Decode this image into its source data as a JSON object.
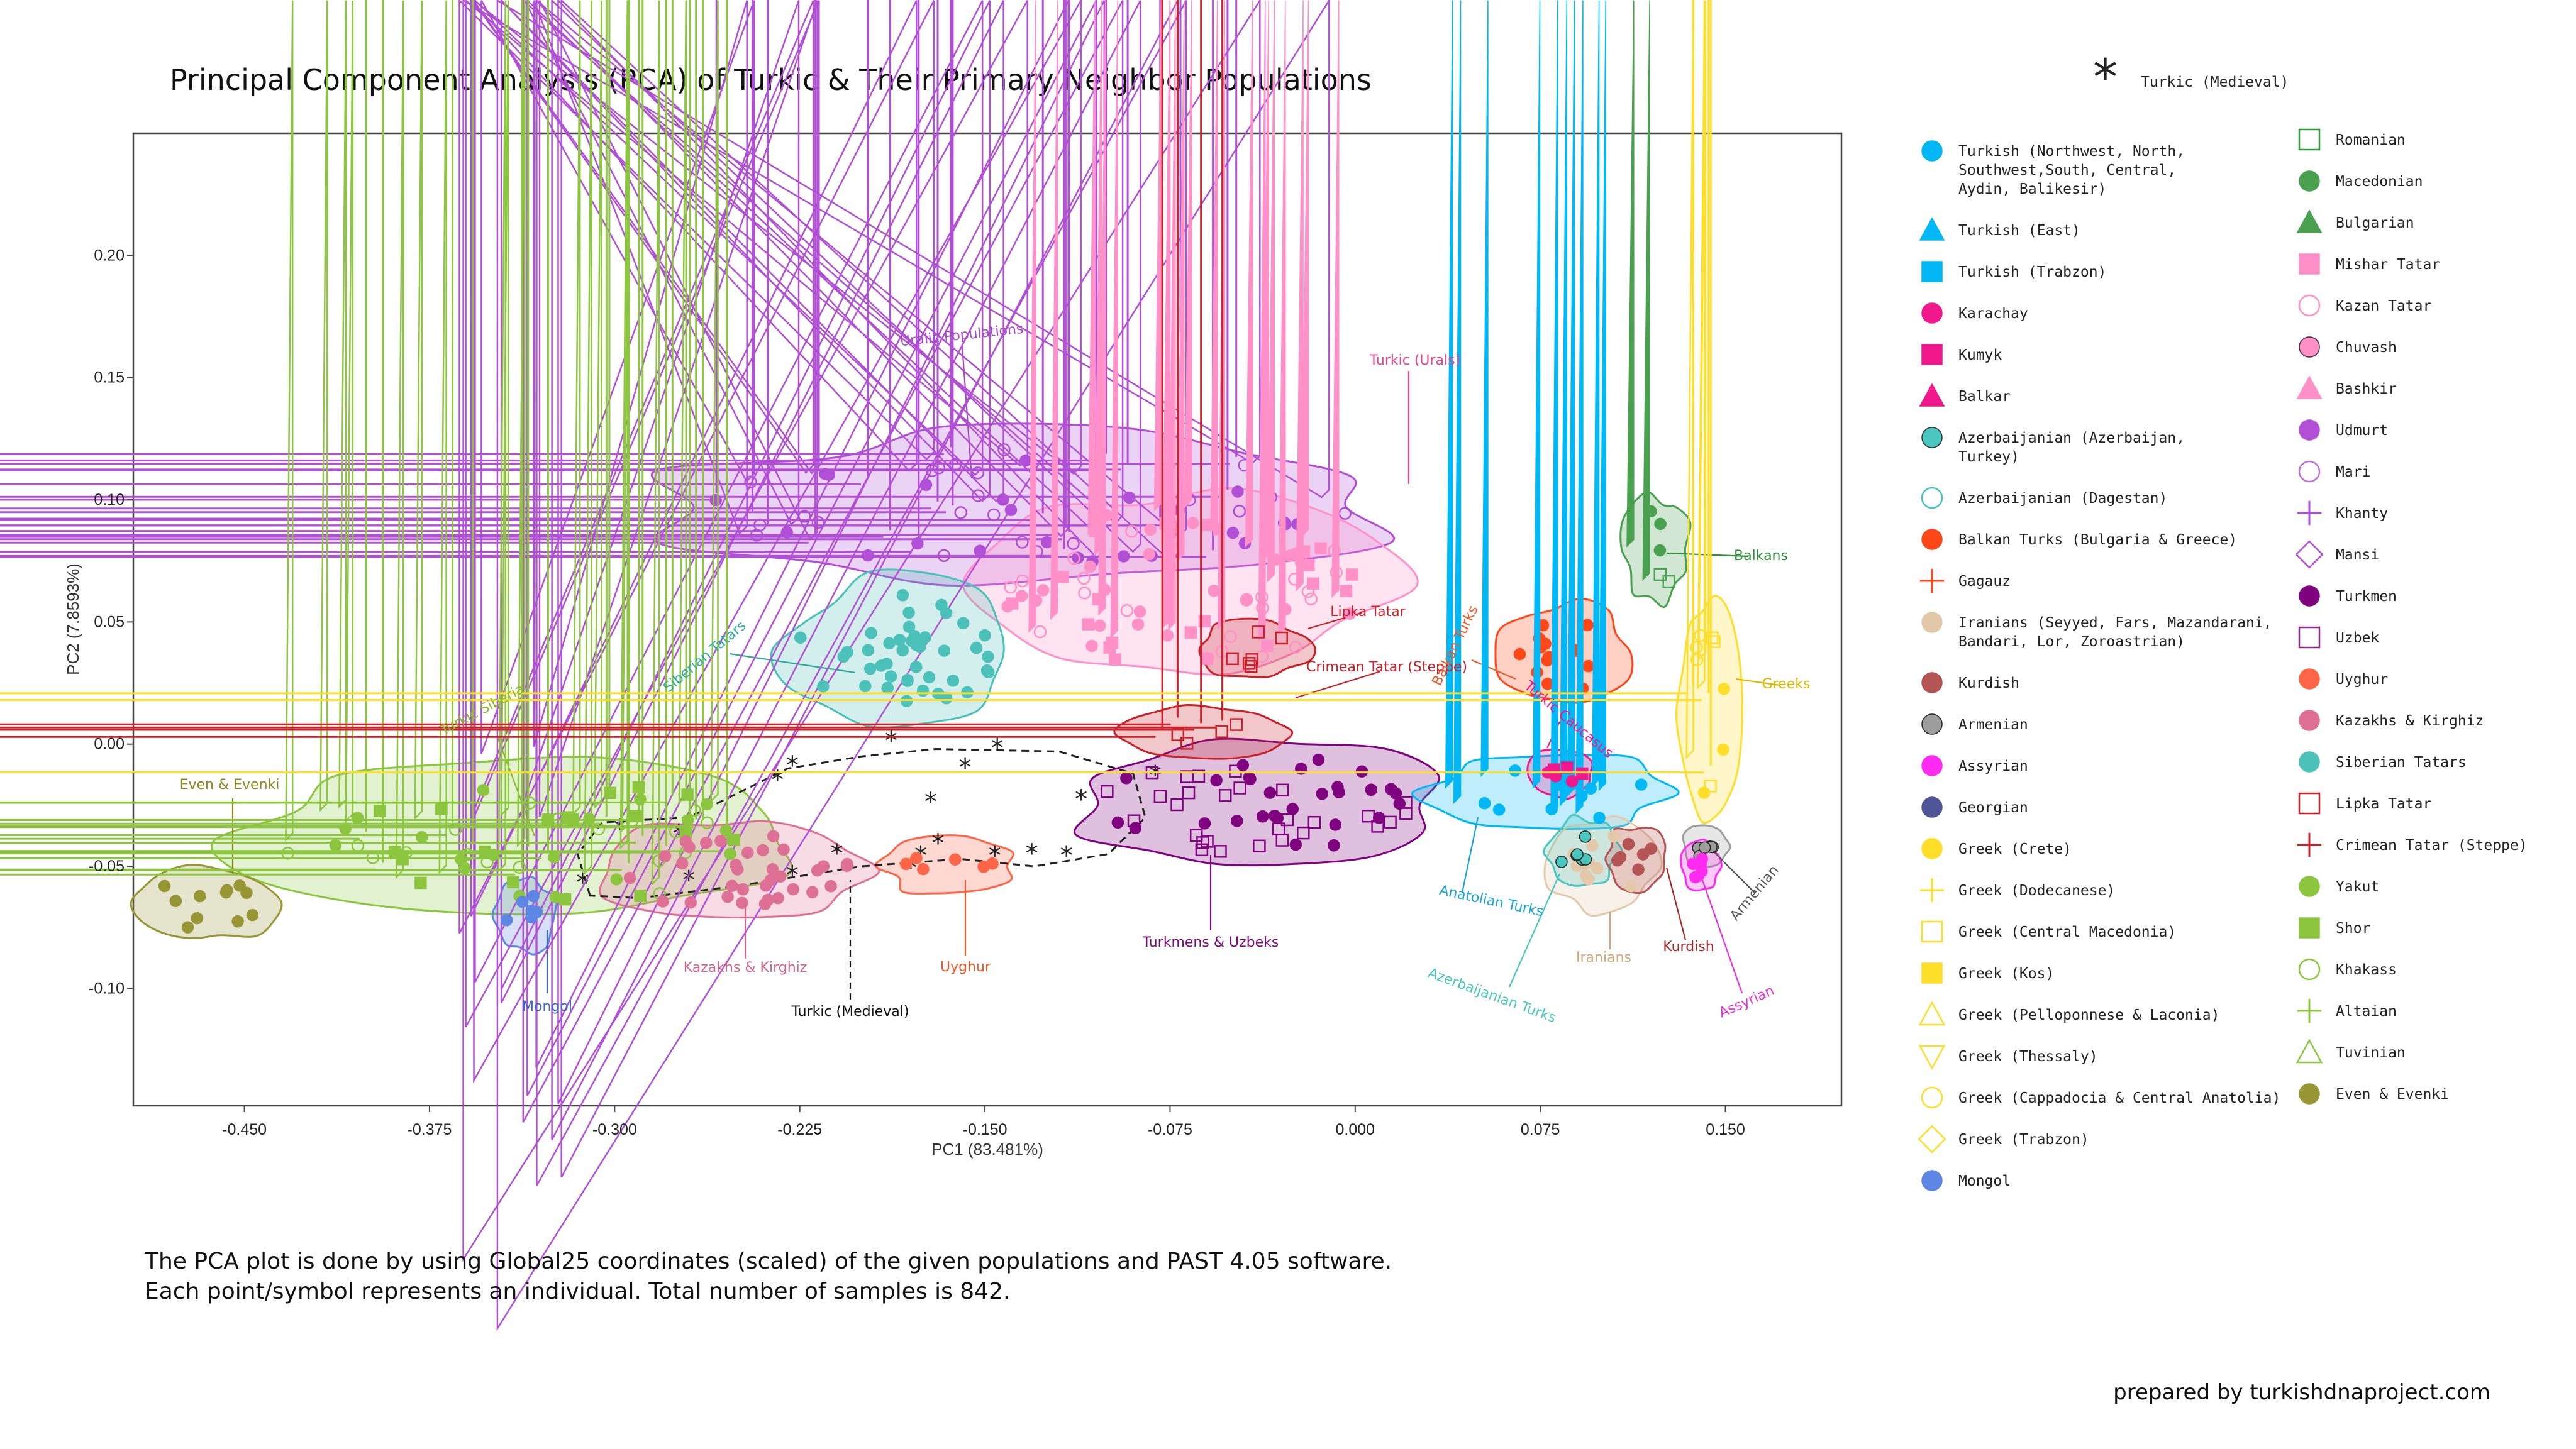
{
  "colors": {
    "turkish": "#00B8F5",
    "turkish_east": "#00B8F5",
    "turkish_trabzon": "#00B8F5",
    "karachay": "#F0188C",
    "kumyk": "#F0188C",
    "balkar": "#F0188C",
    "azerbaijanian": "#49C6BE",
    "balkan_turks": "#FF4719",
    "gagauz": "#FF4719",
    "iranians": "#E3C9A9",
    "kurdish": "#B45454",
    "armenian": "#9E9E9E",
    "assyrian": "#FF2BF0",
    "georgian": "#4F5496",
    "greek": "#FFDE2A",
    "mongol": "#5D86E5",
    "romanian": "#2E9E3E",
    "macedonian": "#49A150",
    "bulgarian": "#49A150",
    "mishar_tatar": "#FF91C8",
    "kazan_tatar": "#FF91C8",
    "chuvash": "#E6449C",
    "bashkir": "#FF91C8",
    "udmurt": "#B14FD6",
    "mari": "#C26EDF",
    "khanty": "#B14FD6",
    "mansi": "#B14FD6",
    "turkmen": "#7F037F",
    "uzbek": "#8C2B8C",
    "uyghur": "#FF6547",
    "kazakhs_kirghiz": "#DE7096",
    "siberian_tatars": "#4BC1B9",
    "lipka_tatar": "#C8212A",
    "crimean_tatar": "#C8212A",
    "yakut": "#8CC63F",
    "shor": "#8CC63F",
    "khakass": "#8CC63F",
    "altaian": "#8CC63F",
    "tuvinian": "#8CC63F",
    "even_evenki": "#989535",
    "medieval": "#222222"
  },
  "header": {
    "title": "Principal Component Analysis (PCA) of Turkic & Their Primary Neighbor Populations",
    "medieval_key_label": "Turkic (Medieval)"
  },
  "legend": {
    "col1": [
      {
        "label": "Turkish (Northwest, North,",
        "label2": "Southwest,South, Central,",
        "label3": "Aydin, Balikesir)",
        "shape": "circle",
        "fill": "#00B8F5",
        "stroke": "#00B8F5"
      },
      {
        "label": "Turkish (East)",
        "shape": "triangle",
        "fill": "#00B8F5",
        "stroke": "#00B8F5"
      },
      {
        "label": "Turkish (Trabzon)",
        "shape": "square",
        "fill": "#00B8F5",
        "stroke": "#00B8F5"
      },
      {
        "label": "Karachay",
        "shape": "circle",
        "fill": "#F0188C",
        "stroke": "#F0188C"
      },
      {
        "label": "Kumyk",
        "shape": "square",
        "fill": "#F0188C",
        "stroke": "#F0188C"
      },
      {
        "label": "Balkar",
        "shape": "triangle",
        "fill": "#F0188C",
        "stroke": "#F0188C"
      },
      {
        "label": "Azerbaijanian (Azerbaijan,",
        "label2": "Turkey)",
        "shape": "circle",
        "fill": "#49C6BE",
        "stroke": "#333333"
      },
      {
        "label": "Azerbaijanian (Dagestan)",
        "shape": "circle-open",
        "fill": "none",
        "stroke": "#49C6BE"
      },
      {
        "label": "Balkan Turks (Bulgaria & Greece)",
        "shape": "circle",
        "fill": "#FF4719",
        "stroke": "#FF4719"
      },
      {
        "label": "Gagauz",
        "shape": "plus",
        "fill": "none",
        "stroke": "#FF4719"
      },
      {
        "label": "Iranians (Seyyed, Fars, Mazandarani,",
        "label2": "Bandari, Lor, Zoroastrian)",
        "shape": "circle",
        "fill": "#E3C9A9",
        "stroke": "#E3C9A9"
      },
      {
        "label": "Kurdish",
        "shape": "circle",
        "fill": "#B45454",
        "stroke": "#B45454"
      },
      {
        "label": "Armenian",
        "shape": "circle",
        "fill": "#9E9E9E",
        "stroke": "#222222"
      },
      {
        "label": "Assyrian",
        "shape": "circle",
        "fill": "#FF2BF0",
        "stroke": "#FF2BF0"
      },
      {
        "label": "Georgian",
        "shape": "circle",
        "fill": "#4F5496",
        "stroke": "#4F5496"
      },
      {
        "label": "Greek (Crete)",
        "shape": "circle",
        "fill": "#FFDE2A",
        "stroke": "#FFDE2A"
      },
      {
        "label": "Greek (Dodecanese)",
        "shape": "plus",
        "fill": "none",
        "stroke": "#FFDE2A"
      },
      {
        "label": "Greek (Central Macedonia)",
        "shape": "square-open",
        "fill": "none",
        "stroke": "#FFDE2A"
      },
      {
        "label": "Greek (Kos)",
        "shape": "square",
        "fill": "#FFDE2A",
        "stroke": "#FFDE2A"
      },
      {
        "label": "Greek (Pelloponnese & Laconia)",
        "shape": "triangle-open",
        "fill": "none",
        "stroke": "#FFDE2A"
      },
      {
        "label": "Greek (Thessaly)",
        "shape": "triangle-down-open",
        "fill": "none",
        "stroke": "#FFDE2A"
      },
      {
        "label": "Greek (Cappadocia & Central Anatolia)",
        "shape": "circle-open",
        "fill": "none",
        "stroke": "#FFDE2A"
      },
      {
        "label": "Greek (Trabzon)",
        "shape": "diamond-open",
        "fill": "none",
        "stroke": "#FFDE2A"
      },
      {
        "label": "Mongol",
        "shape": "circle",
        "fill": "#5D86E5",
        "stroke": "#5D86E5"
      }
    ],
    "col2": [
      {
        "label": "Romanian",
        "shape": "square-open",
        "fill": "none",
        "stroke": "#2E9E3E"
      },
      {
        "label": "Macedonian",
        "shape": "circle",
        "fill": "#49A150",
        "stroke": "#49A150"
      },
      {
        "label": "Bulgarian",
        "shape": "triangle",
        "fill": "#49A150",
        "stroke": "#49A150"
      },
      {
        "label": "Mishar Tatar",
        "shape": "square",
        "fill": "#FF91C8",
        "stroke": "#FF91C8"
      },
      {
        "label": "Kazan Tatar",
        "shape": "circle-open",
        "fill": "none",
        "stroke": "#FF91C8"
      },
      {
        "label": "Chuvash",
        "shape": "circle",
        "fill": "#FF91C8",
        "stroke": "#333333"
      },
      {
        "label": "Bashkir",
        "shape": "triangle",
        "fill": "#FF91C8",
        "stroke": "#FF91C8"
      },
      {
        "label": "Udmurt",
        "shape": "circle",
        "fill": "#B14FD6",
        "stroke": "#B14FD6"
      },
      {
        "label": "Mari",
        "shape": "circle-open",
        "fill": "none",
        "stroke": "#C26EDF"
      },
      {
        "label": "Khanty",
        "shape": "plus",
        "fill": "none",
        "stroke": "#B14FD6"
      },
      {
        "label": "Mansi",
        "shape": "diamond-open",
        "fill": "none",
        "stroke": "#B14FD6"
      },
      {
        "label": "Turkmen",
        "shape": "circle",
        "fill": "#7F037F",
        "stroke": "#7F037F"
      },
      {
        "label": "Uzbek",
        "shape": "square-open",
        "fill": "none",
        "stroke": "#8C2B8C"
      },
      {
        "label": "Uyghur",
        "shape": "circle",
        "fill": "#FF6547",
        "stroke": "#FF6547"
      },
      {
        "label": "Kazakhs & Kirghiz",
        "shape": "circle",
        "fill": "#DE7096",
        "stroke": "#DE7096"
      },
      {
        "label": "Siberian Tatars",
        "shape": "circle",
        "fill": "#4BC1B9",
        "stroke": "#4BC1B9"
      },
      {
        "label": "Lipka Tatar",
        "shape": "square-open",
        "fill": "none",
        "stroke": "#C8212A"
      },
      {
        "label": "Crimean Tatar (Steppe)",
        "shape": "plus",
        "fill": "none",
        "stroke": "#C8212A"
      },
      {
        "label": "Yakut",
        "shape": "circle",
        "fill": "#8CC63F",
        "stroke": "#8CC63F"
      },
      {
        "label": "Shor",
        "shape": "square",
        "fill": "#8CC63F",
        "stroke": "#8CC63F"
      },
      {
        "label": "Khakass",
        "shape": "circle-open",
        "fill": "none",
        "stroke": "#8CC63F"
      },
      {
        "label": "Altaian",
        "shape": "plus",
        "fill": "none",
        "stroke": "#8CC63F"
      },
      {
        "label": "Tuvinian",
        "shape": "triangle-open",
        "fill": "none",
        "stroke": "#8CC63F"
      },
      {
        "label": "Even & Evenki",
        "shape": "circle",
        "fill": "#989535",
        "stroke": "#989535"
      }
    ]
  },
  "chart_data": {
    "type": "scatter",
    "title": "Principal Component Analysis (PCA) of Turkic & Their Primary Neighbor Populations",
    "xlabel": "PC1 (83.481%)",
    "ylabel": "PC2 (7.8593%)",
    "xlim": [
      -0.495,
      0.197
    ],
    "ylim": [
      -0.148,
      0.25
    ],
    "xticks": [
      "-0.450",
      "-0.375",
      "-0.300",
      "-0.225",
      "-0.150",
      "-0.075",
      "0.000",
      "0.075",
      "0.150"
    ],
    "yticks": [
      "-0.10",
      "-0.05",
      "0.00",
      "0.05",
      "0.10",
      "0.15",
      "0.20"
    ],
    "xtick_values": [
      -0.45,
      -0.375,
      -0.3,
      -0.225,
      -0.15,
      -0.075,
      0.0,
      0.075,
      0.15
    ],
    "ytick_values": [
      -0.1,
      -0.05,
      0.0,
      0.05,
      0.1,
      0.15,
      0.2
    ],
    "clusters": [
      {
        "name": "Uralic Populations",
        "color": "#B14FD6",
        "label_color": "#A24AC9",
        "center": [
          -0.13,
          0.097
        ],
        "extent": [
          0.145,
          0.027
        ]
      },
      {
        "name": "Turkic (Urals)",
        "color": "#FF91C8",
        "label_color": "#E8478F",
        "center": [
          -0.07,
          0.065
        ],
        "extent": [
          0.08,
          0.036
        ]
      },
      {
        "name": "Siberian Tatars",
        "color": "#4BC1B9",
        "label_color": "#2FA89F",
        "center": [
          -0.185,
          0.038
        ],
        "extent": [
          0.045,
          0.026
        ]
      },
      {
        "name": "Turkic Siberia",
        "color": "#8CC63F",
        "label_color": "#8AB92F",
        "center": [
          -0.335,
          -0.04
        ],
        "extent": [
          0.11,
          0.028
        ]
      },
      {
        "name": "Even & Evenki",
        "color": "#989535",
        "label_color": "#8B8721",
        "center": [
          -0.465,
          -0.065
        ],
        "extent": [
          0.025,
          0.012
        ]
      },
      {
        "name": "Mongol",
        "color": "#5D86E5",
        "label_color": "#3C65C6",
        "center": [
          -0.336,
          -0.07
        ],
        "extent": [
          0.009,
          0.012
        ]
      },
      {
        "name": "Kazakhs & Kirghiz",
        "color": "#DE7096",
        "label_color": "#D1668A",
        "center": [
          -0.25,
          -0.052
        ],
        "extent": [
          0.05,
          0.018
        ]
      },
      {
        "name": "Uyghur",
        "color": "#FF6547",
        "label_color": "#F05A2A",
        "center": [
          -0.165,
          -0.05
        ],
        "extent": [
          0.022,
          0.008
        ]
      },
      {
        "name": "Turkmens & Uzbeks",
        "color": "#7F037F",
        "label_color": "#7A0B7A",
        "center": [
          -0.04,
          -0.025
        ],
        "extent": [
          0.07,
          0.022
        ]
      },
      {
        "name": "Lipka Tatar",
        "color": "#C8212A",
        "label_color": "#C8212A",
        "center": [
          -0.04,
          0.039
        ],
        "extent": [
          0.02,
          0.008
        ]
      },
      {
        "name": "Crimean Tatar (Steppe)",
        "color": "#C8212A",
        "label_color": "#C8212A",
        "center": [
          -0.06,
          0.005
        ],
        "extent": [
          0.03,
          0.007
        ]
      },
      {
        "name": "Balkan Turks",
        "color": "#FF4719",
        "label_color": "#F05A2A",
        "center": [
          0.085,
          0.037
        ],
        "extent": [
          0.022,
          0.017
        ]
      },
      {
        "name": "Anatolian Turks",
        "color": "#00B8F5",
        "label_color": "#19A5D6",
        "center": [
          0.078,
          -0.02
        ],
        "extent": [
          0.045,
          0.013
        ]
      },
      {
        "name": "Turkic Caucasus",
        "color": "#F0188C",
        "label_color": "#F0188C",
        "center": [
          0.083,
          -0.012
        ],
        "extent": [
          0.01,
          0.006
        ]
      },
      {
        "name": "Iranians",
        "color": "#E3C9A9",
        "label_color": "#D1A87B",
        "center": [
          0.1,
          -0.05
        ],
        "extent": [
          0.018,
          0.016
        ]
      },
      {
        "name": "Azerbaijanian Turks",
        "color": "#49C6BE",
        "label_color": "#49C6BE",
        "center": [
          0.092,
          -0.044
        ],
        "extent": [
          0.011,
          0.01
        ]
      },
      {
        "name": "Kurdish",
        "color": "#B45454",
        "label_color": "#A32A2A",
        "center": [
          0.114,
          -0.047
        ],
        "extent": [
          0.009,
          0.01
        ]
      },
      {
        "name": "Armenian",
        "color": "#9E9E9E",
        "label_color": "#555555",
        "center": [
          0.142,
          -0.042
        ],
        "extent": [
          0.006,
          0.006
        ]
      },
      {
        "name": "Assyrian",
        "color": "#FF2BF0",
        "label_color": "#E833D8",
        "center": [
          0.14,
          -0.05
        ],
        "extent": [
          0.004,
          0.006
        ]
      },
      {
        "name": "Balkans",
        "color": "#49A150",
        "label_color": "#2E8E3A",
        "center": [
          0.122,
          0.08
        ],
        "extent": [
          0.01,
          0.018
        ]
      },
      {
        "name": "Greeks",
        "color": "#FFDE2A",
        "label_color": "#E0B800",
        "center": [
          0.143,
          0.012
        ],
        "extent": [
          0.009,
          0.045
        ]
      }
    ],
    "medieval_path": [
      [
        -0.31,
        -0.062
      ],
      [
        -0.315,
        -0.045
      ],
      [
        -0.305,
        -0.032
      ],
      [
        -0.27,
        -0.03
      ],
      [
        -0.23,
        -0.01
      ],
      [
        -0.2,
        -0.005
      ],
      [
        -0.17,
        -0.002
      ],
      [
        -0.12,
        -0.003
      ],
      [
        -0.09,
        -0.012
      ],
      [
        -0.085,
        -0.03
      ],
      [
        -0.1,
        -0.045
      ],
      [
        -0.13,
        -0.05
      ],
      [
        -0.16,
        -0.047
      ],
      [
        -0.2,
        -0.05
      ],
      [
        -0.25,
        -0.058
      ],
      [
        -0.29,
        -0.063
      ]
    ],
    "medieval_points": [
      [
        -0.313,
        -0.056
      ],
      [
        -0.298,
        -0.034
      ],
      [
        -0.274,
        -0.036
      ],
      [
        -0.234,
        -0.014
      ],
      [
        -0.228,
        -0.008
      ],
      [
        -0.188,
        0.002
      ],
      [
        -0.172,
        -0.023
      ],
      [
        -0.158,
        -0.009
      ],
      [
        -0.145,
        -0.001
      ],
      [
        -0.131,
        -0.044
      ],
      [
        -0.111,
        -0.022
      ],
      [
        -0.081,
        -0.012
      ],
      [
        -0.146,
        -0.045
      ],
      [
        -0.117,
        -0.045
      ],
      [
        -0.27,
        -0.055
      ],
      [
        -0.228,
        -0.053
      ],
      [
        -0.21,
        -0.044
      ],
      [
        -0.176,
        -0.045
      ],
      [
        -0.169,
        -0.04
      ],
      [
        -0.18,
        -0.05
      ]
    ]
  },
  "annotations": {
    "uralic": "Uralic Populations",
    "turkic_urals": "Turkic (Urals)",
    "siberian_tatars": "Siberian Tatars",
    "turkic_siberia": "Turkic Siberia",
    "even_evenki": "Even & Evenki",
    "mongol": "Mongol",
    "kazakhs": "Kazakhs & Kirghiz",
    "medieval": "Turkic (Medieval)",
    "uyghur": "Uyghur",
    "turkmens": "Turkmens & Uzbeks",
    "lipka": "Lipka Tatar",
    "crimean": "Crimean Tatar (Steppe)",
    "balkan_turks": "Balkan Turks",
    "turkic_caucasus": "Turkic Caucasus",
    "anatolian": "Anatolian Turks",
    "azerbaijanian": "Azerbaijanian Turks",
    "iranians": "Iranians",
    "kurdish": "Kurdish",
    "assyrian": "Assyrian",
    "armenian": "Armenian",
    "balkans": "Balkans",
    "greeks": "Greeks"
  },
  "footer": {
    "line1": "The PCA plot is done by using Global25 coordinates (scaled) of the given populations and PAST 4.05 software.",
    "line2": "Each point/symbol represents an individual. Total number of samples is 842.",
    "credit": "prepared by turkishdnaproject.com"
  }
}
